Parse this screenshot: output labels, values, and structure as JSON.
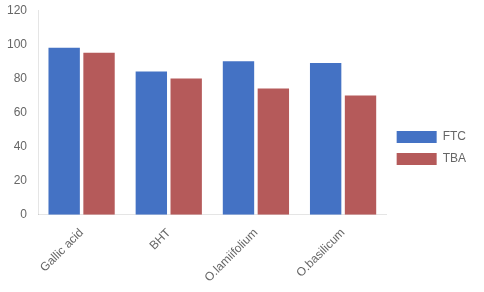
{
  "chart_data": {
    "type": "bar",
    "categories": [
      "Gallic acid",
      "BHT",
      "O.lamiifolium",
      "O.basilicum"
    ],
    "series": [
      {
        "name": "FTC",
        "color": "#4472C4",
        "values": [
          98,
          84,
          90,
          89
        ]
      },
      {
        "name": "TBA",
        "color": "#B55A5A",
        "values": [
          95,
          80,
          74,
          70
        ]
      }
    ],
    "ylim": [
      0,
      120
    ],
    "yticks": [
      0,
      20,
      40,
      60,
      80,
      100,
      120
    ],
    "grid": false,
    "legend": "right"
  }
}
